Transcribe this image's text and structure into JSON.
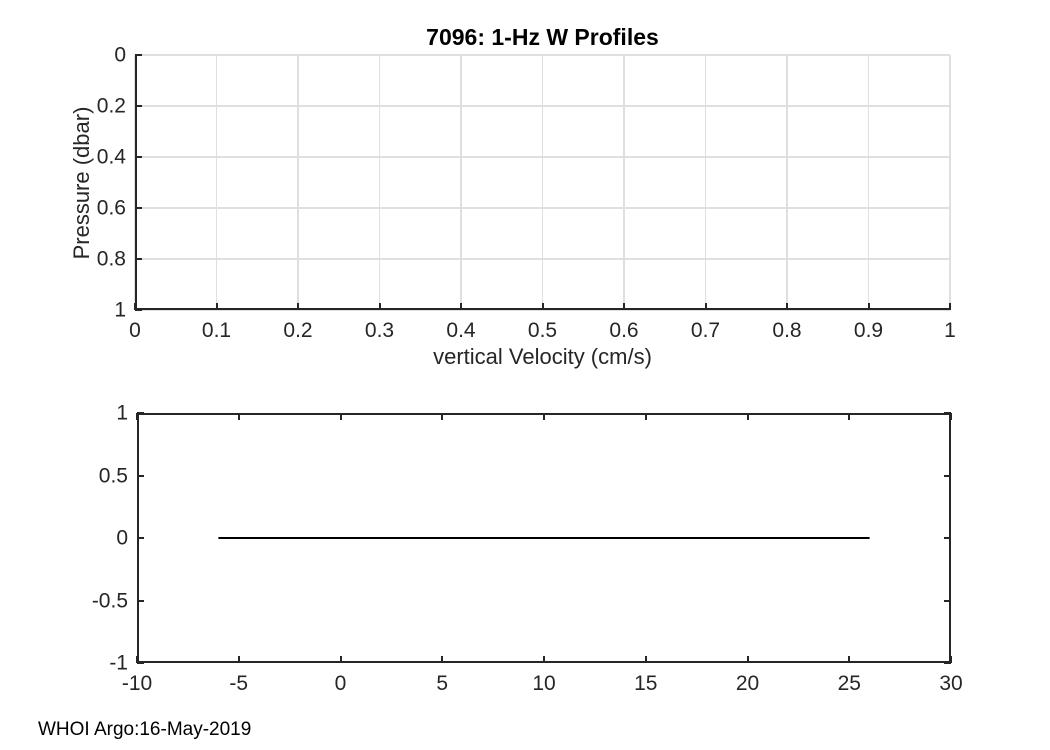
{
  "colors": {
    "background": "#ffffff",
    "axis": "#262626",
    "grid": "#dfdfdf",
    "data_line": "#000000",
    "title": "#000000"
  },
  "footer": {
    "text": "WHOI Argo:16-May-2019"
  },
  "chart_data": [
    {
      "type": "line",
      "title": "7096: 1-Hz W Profiles",
      "xlabel": "vertical Velocity (cm/s)",
      "ylabel": "Pressure (dbar)",
      "xlim": [
        0,
        1
      ],
      "ylim": [
        0,
        1
      ],
      "ydir": "reverse",
      "xticks": [
        0,
        0.1,
        0.2,
        0.3,
        0.4,
        0.5,
        0.6,
        0.7,
        0.8,
        0.9,
        1
      ],
      "xtick_labels": [
        "0",
        "0.1",
        "0.2",
        "0.3",
        "0.4",
        "0.5",
        "0.6",
        "0.7",
        "0.8",
        "0.9",
        "1"
      ],
      "yticks": [
        0,
        0.2,
        0.4,
        0.6,
        0.8,
        1
      ],
      "ytick_labels": [
        "0",
        "0.2",
        "0.4",
        "0.6",
        "0.8",
        "1"
      ],
      "grid": true,
      "box": false,
      "legend": "none",
      "series": []
    },
    {
      "type": "line",
      "title": "",
      "xlabel": "",
      "ylabel": "",
      "xlim": [
        -10,
        30
      ],
      "ylim": [
        -1,
        1
      ],
      "ydir": "normal",
      "xticks": [
        -10,
        -5,
        0,
        5,
        10,
        15,
        20,
        25,
        30
      ],
      "xtick_labels": [
        "-10",
        "-5",
        "0",
        "5",
        "10",
        "15",
        "20",
        "25",
        "30"
      ],
      "yticks": [
        -1,
        -0.5,
        0,
        0.5,
        1
      ],
      "ytick_labels": [
        "-1",
        "-0.5",
        "0",
        "0.5",
        "1"
      ],
      "grid": false,
      "box": true,
      "legend": "none",
      "series": [
        {
          "x": [
            -6,
            26
          ],
          "y": [
            0,
            0
          ]
        }
      ]
    }
  ]
}
